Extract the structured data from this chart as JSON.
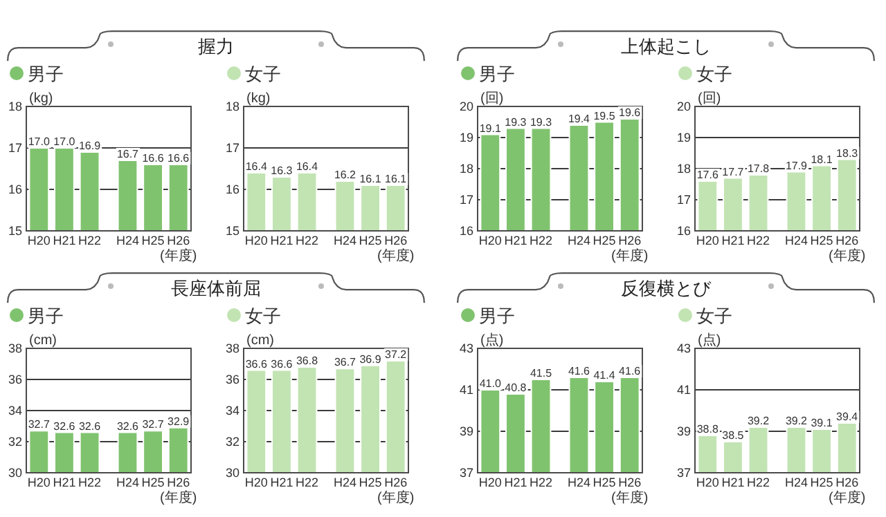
{
  "chart_data": [
    {
      "type": "bar",
      "title": "握力",
      "categories": [
        "H20",
        "H21",
        "H22",
        null,
        "H24",
        "H25",
        "H26"
      ],
      "xlabel": "(年度)",
      "ylabel": "(kg)",
      "series": [
        {
          "name": "男子",
          "color": "#80c36f",
          "values": [
            17.0,
            17.0,
            16.9,
            null,
            16.7,
            16.6,
            16.6
          ],
          "value_labels": [
            "17.0",
            "17.0",
            "16.9",
            null,
            "16.7",
            "16.6",
            "16.6"
          ]
        }
      ],
      "ylim": [
        15,
        18
      ],
      "yticks": [
        15,
        16,
        17,
        18
      ],
      "grid": "y",
      "legend": "top left"
    },
    {
      "type": "bar",
      "categories": [
        "H20",
        "H21",
        "H22",
        null,
        "H24",
        "H25",
        "H26"
      ],
      "xlabel": "(年度)",
      "ylabel": "(kg)",
      "series": [
        {
          "name": "女子",
          "color": "#c2e4b3",
          "values": [
            16.4,
            16.3,
            16.4,
            null,
            16.2,
            16.1,
            16.1
          ],
          "value_labels": [
            "16.4",
            "16.3",
            "16.4",
            null,
            "16.2",
            "16.1",
            "16.1"
          ]
        }
      ],
      "ylim": [
        15,
        18
      ],
      "yticks": [
        15,
        16,
        17,
        18
      ],
      "grid": "y",
      "legend": "top left"
    },
    {
      "type": "bar",
      "title": "上体起こし",
      "categories": [
        "H20",
        "H21",
        "H22",
        null,
        "H24",
        "H25",
        "H26"
      ],
      "xlabel": "(年度)",
      "ylabel": "(回)",
      "series": [
        {
          "name": "男子",
          "color": "#80c36f",
          "values": [
            19.1,
            19.3,
            19.3,
            null,
            19.4,
            19.5,
            19.6
          ],
          "value_labels": [
            "19.1",
            "19.3",
            "19.3",
            null,
            "19.4",
            "19.5",
            "19.6"
          ]
        }
      ],
      "ylim": [
        16,
        20
      ],
      "yticks": [
        16,
        17,
        18,
        19,
        20
      ],
      "grid": "y",
      "legend": "top left"
    },
    {
      "type": "bar",
      "categories": [
        "H20",
        "H21",
        "H22",
        null,
        "H24",
        "H25",
        "H26"
      ],
      "xlabel": "(年度)",
      "ylabel": "(回)",
      "series": [
        {
          "name": "女子",
          "color": "#c2e4b3",
          "values": [
            17.6,
            17.7,
            17.8,
            null,
            17.9,
            18.1,
            18.3
          ],
          "value_labels": [
            "17.6",
            "17.7",
            "17.8",
            null,
            "17.9",
            "18.1",
            "18.3"
          ]
        }
      ],
      "ylim": [
        16,
        20
      ],
      "yticks": [
        16,
        17,
        18,
        19,
        20
      ],
      "grid": "y",
      "legend": "top left"
    },
    {
      "type": "bar",
      "title": "長座体前屈",
      "categories": [
        "H20",
        "H21",
        "H22",
        null,
        "H24",
        "H25",
        "H26"
      ],
      "xlabel": "(年度)",
      "ylabel": "(cm)",
      "series": [
        {
          "name": "男子",
          "color": "#80c36f",
          "values": [
            32.7,
            32.6,
            32.6,
            null,
            32.6,
            32.7,
            32.9
          ],
          "value_labels": [
            "32.7",
            "32.6",
            "32.6",
            null,
            "32.6",
            "32.7",
            "32.9"
          ]
        }
      ],
      "ylim": [
        30,
        38
      ],
      "yticks": [
        30,
        32,
        34,
        36,
        38
      ],
      "grid": "y",
      "legend": "top left"
    },
    {
      "type": "bar",
      "categories": [
        "H20",
        "H21",
        "H22",
        null,
        "H24",
        "H25",
        "H26"
      ],
      "xlabel": "(年度)",
      "ylabel": "(cm)",
      "series": [
        {
          "name": "女子",
          "color": "#c2e4b3",
          "values": [
            36.6,
            36.6,
            36.8,
            null,
            36.7,
            36.9,
            37.2
          ],
          "value_labels": [
            "36.6",
            "36.6",
            "36.8",
            null,
            "36.7",
            "36.9",
            "37.2"
          ]
        }
      ],
      "ylim": [
        30,
        38
      ],
      "yticks": [
        30,
        32,
        34,
        36,
        38
      ],
      "grid": "y",
      "legend": "top left"
    },
    {
      "type": "bar",
      "title": "反復横とび",
      "categories": [
        "H20",
        "H21",
        "H22",
        null,
        "H24",
        "H25",
        "H26"
      ],
      "xlabel": "(年度)",
      "ylabel": "(点)",
      "series": [
        {
          "name": "男子",
          "color": "#80c36f",
          "values": [
            41.0,
            40.8,
            41.5,
            null,
            41.6,
            41.4,
            41.6
          ],
          "value_labels": [
            "41.0",
            "40.8",
            "41.5",
            null,
            "41.6",
            "41.4",
            "41.6"
          ]
        }
      ],
      "ylim": [
        37,
        43
      ],
      "yticks": [
        37,
        39,
        41,
        43
      ],
      "grid": "y",
      "legend": "top left"
    },
    {
      "type": "bar",
      "categories": [
        "H20",
        "H21",
        "H22",
        null,
        "H24",
        "H25",
        "H26"
      ],
      "xlabel": "(年度)",
      "ylabel": "(点)",
      "series": [
        {
          "name": "女子",
          "color": "#c2e4b3",
          "values": [
            38.8,
            38.5,
            39.2,
            null,
            39.2,
            39.1,
            39.4
          ],
          "value_labels": [
            "38.8",
            "38.5",
            "39.2",
            null,
            "39.2",
            "39.1",
            "39.4"
          ]
        }
      ],
      "ylim": [
        37,
        43
      ],
      "yticks": [
        37,
        39,
        41,
        43
      ],
      "grid": "y",
      "legend": "top left"
    }
  ]
}
